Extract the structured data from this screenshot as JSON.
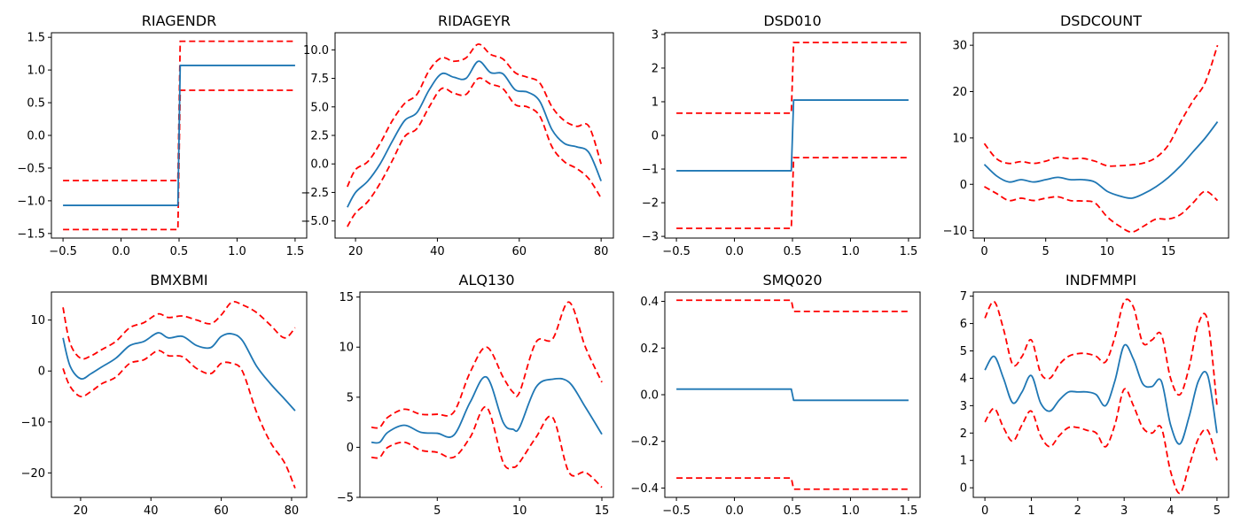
{
  "colors": {
    "fit": "#1f77b4",
    "ci": "#ff0000",
    "axis": "#000000",
    "background": "#ffffff"
  },
  "chart_data": [
    {
      "type": "line",
      "title": "RIAGENDR",
      "xlabel": "",
      "ylabel": "",
      "xlim": [
        -0.6,
        1.6
      ],
      "ylim": [
        -1.57,
        1.57
      ],
      "xticks": [
        -0.5,
        0.0,
        0.5,
        1.0,
        1.5
      ],
      "xtick_labels": [
        "−0.5",
        "0.0",
        "0.5",
        "1.0",
        "1.5"
      ],
      "yticks": [
        -1.5,
        -1.0,
        -0.5,
        0.0,
        0.5,
        1.0,
        1.5
      ],
      "ytick_labels": [
        "−1.5",
        "−1.0",
        "−0.5",
        "0.0",
        "0.5",
        "1.0",
        "1.5"
      ],
      "grid": false,
      "series": [
        {
          "role": "fit",
          "x": [
            -0.5,
            0.49,
            0.51,
            1.5
          ],
          "y": [
            -1.07,
            -1.07,
            1.07,
            1.07
          ]
        },
        {
          "role": "ci_upper",
          "x": [
            -0.5,
            0.49,
            0.51,
            1.5
          ],
          "y": [
            -0.69,
            -0.69,
            1.44,
            1.44
          ]
        },
        {
          "role": "ci_lower",
          "x": [
            -0.5,
            0.49,
            0.51,
            1.5
          ],
          "y": [
            -1.44,
            -1.44,
            0.69,
            0.69
          ]
        }
      ]
    },
    {
      "type": "line",
      "title": "RIDAGEYR",
      "xlabel": "",
      "ylabel": "",
      "xlim": [
        15,
        83
      ],
      "ylim": [
        -6.5,
        11.5
      ],
      "xticks": [
        20,
        40,
        60,
        80
      ],
      "xtick_labels": [
        "20",
        "40",
        "60",
        "80"
      ],
      "yticks": [
        -5.0,
        -2.5,
        0.0,
        2.5,
        5.0,
        7.5,
        10.0
      ],
      "ytick_labels": [
        "−5.0",
        "−2.5",
        "0.0",
        "2.5",
        "5.0",
        "7.5",
        "10.0"
      ],
      "grid": false,
      "series": [
        {
          "role": "fit",
          "x": [
            18,
            20,
            23,
            26,
            29,
            32,
            35,
            38,
            41,
            44,
            47,
            50,
            53,
            56,
            59,
            62,
            65,
            68,
            71,
            74,
            77,
            80
          ],
          "y": [
            -3.8,
            -2.5,
            -1.5,
            0,
            2,
            3.8,
            4.5,
            6.5,
            7.9,
            7.6,
            7.5,
            9,
            8,
            7.9,
            6.5,
            6.3,
            5.5,
            3,
            1.8,
            1.5,
            1.0,
            -1.5
          ]
        },
        {
          "role": "ci_upper",
          "x": [
            18,
            20,
            23,
            26,
            29,
            32,
            35,
            38,
            41,
            44,
            47,
            50,
            53,
            56,
            59,
            62,
            65,
            68,
            71,
            74,
            77,
            80
          ],
          "y": [
            -2.0,
            -0.5,
            0.2,
            1.8,
            3.8,
            5.3,
            6.1,
            8.2,
            9.3,
            9.0,
            9.3,
            10.5,
            9.6,
            9.2,
            8.0,
            7.6,
            7.1,
            5.0,
            3.8,
            3.3,
            3.3,
            0.0
          ]
        },
        {
          "role": "ci_lower",
          "x": [
            18,
            20,
            23,
            26,
            29,
            32,
            35,
            38,
            41,
            44,
            47,
            50,
            53,
            56,
            59,
            62,
            65,
            68,
            71,
            74,
            77,
            80
          ],
          "y": [
            -5.5,
            -4.3,
            -3.3,
            -1.7,
            0.3,
            2.4,
            3.1,
            5.0,
            6.6,
            6.2,
            6.1,
            7.5,
            7.0,
            6.6,
            5.2,
            5.0,
            4.2,
            1.5,
            0.2,
            -0.4,
            -1.3,
            -3.0
          ]
        }
      ]
    },
    {
      "type": "line",
      "title": "DSD010",
      "xlabel": "",
      "ylabel": "",
      "xlim": [
        -0.6,
        1.6
      ],
      "ylim": [
        -3.05,
        3.05
      ],
      "xticks": [
        -0.5,
        0.0,
        0.5,
        1.0,
        1.5
      ],
      "xtick_labels": [
        "−0.5",
        "0.0",
        "0.5",
        "1.0",
        "1.5"
      ],
      "yticks": [
        -3,
        -2,
        -1,
        0,
        1,
        2,
        3
      ],
      "ytick_labels": [
        "−3",
        "−2",
        "−1",
        "0",
        "1",
        "2",
        "3"
      ],
      "grid": false,
      "series": [
        {
          "role": "fit",
          "x": [
            -0.5,
            0.49,
            0.51,
            1.5
          ],
          "y": [
            -1.05,
            -1.05,
            1.05,
            1.05
          ]
        },
        {
          "role": "ci_upper",
          "x": [
            -0.5,
            0.49,
            0.51,
            1.5
          ],
          "y": [
            0.66,
            0.66,
            2.76,
            2.76
          ]
        },
        {
          "role": "ci_lower",
          "x": [
            -0.5,
            0.49,
            0.51,
            1.5
          ],
          "y": [
            -2.76,
            -2.76,
            -0.66,
            -0.66
          ]
        }
      ]
    },
    {
      "type": "line",
      "title": "DSDCOUNT",
      "xlabel": "",
      "ylabel": "",
      "xlim": [
        -0.9,
        19.9
      ],
      "ylim": [
        -11.6,
        32.7
      ],
      "xticks": [
        0,
        5,
        10,
        15
      ],
      "xtick_labels": [
        "0",
        "5",
        "10",
        "15"
      ],
      "yticks": [
        -10,
        0,
        10,
        20,
        30
      ],
      "ytick_labels": [
        "−10",
        "0",
        "10",
        "20",
        "30"
      ],
      "grid": false,
      "series": [
        {
          "role": "fit",
          "x": [
            0,
            1,
            2,
            3,
            4,
            5,
            6,
            7,
            8,
            9,
            10,
            11,
            12,
            13,
            14,
            15,
            16,
            17,
            18,
            19
          ],
          "y": [
            4.3,
            1.8,
            0.5,
            1.0,
            0.5,
            1.0,
            1.5,
            1.0,
            1.0,
            0.5,
            -1.5,
            -2.5,
            -3.0,
            -2.0,
            -0.5,
            1.5,
            4.0,
            7.0,
            10.0,
            13.5
          ]
        },
        {
          "role": "ci_upper",
          "x": [
            0,
            1,
            2,
            3,
            4,
            5,
            6,
            7,
            8,
            9,
            10,
            11,
            12,
            13,
            14,
            15,
            16,
            17,
            18,
            19
          ],
          "y": [
            8.8,
            5.5,
            4.5,
            4.9,
            4.5,
            5.0,
            5.8,
            5.5,
            5.6,
            5.0,
            4.0,
            4.0,
            4.2,
            4.6,
            5.8,
            8.5,
            13.5,
            18.0,
            22.0,
            30.0
          ]
        },
        {
          "role": "ci_lower",
          "x": [
            0,
            1,
            2,
            3,
            4,
            5,
            6,
            7,
            8,
            9,
            10,
            11,
            12,
            13,
            14,
            15,
            16,
            17,
            18,
            19
          ],
          "y": [
            -0.5,
            -2.0,
            -3.5,
            -3.0,
            -3.5,
            -3.0,
            -2.7,
            -3.5,
            -3.6,
            -4.0,
            -7.0,
            -9.0,
            -10.3,
            -9.0,
            -7.5,
            -7.5,
            -6.5,
            -4.0,
            -1.5,
            -3.5
          ]
        }
      ]
    },
    {
      "type": "line",
      "title": "BMXBMI",
      "xlabel": "",
      "ylabel": "",
      "xlim": [
        11.7,
        84.3
      ],
      "ylim": [
        -24.8,
        15.5
      ],
      "xticks": [
        20,
        40,
        60,
        80
      ],
      "xtick_labels": [
        "20",
        "40",
        "60",
        "80"
      ],
      "yticks": [
        -20,
        -10,
        0,
        10
      ],
      "ytick_labels": [
        "−20",
        "−10",
        "0",
        "10"
      ],
      "grid": false,
      "series": [
        {
          "role": "fit",
          "x": [
            15,
            17,
            20,
            23,
            26,
            30,
            34,
            38,
            42,
            45,
            49,
            53,
            57,
            60,
            63,
            66,
            70,
            74,
            78,
            81
          ],
          "y": [
            6.5,
            1.0,
            -1.5,
            -0.5,
            0.8,
            2.5,
            5.0,
            5.8,
            7.5,
            6.5,
            6.8,
            5.0,
            4.6,
            6.8,
            7.3,
            6.0,
            1.0,
            -2.5,
            -5.5,
            -7.8
          ]
        },
        {
          "role": "ci_upper",
          "x": [
            15,
            17,
            20,
            23,
            26,
            30,
            34,
            38,
            42,
            45,
            49,
            53,
            57,
            60,
            63,
            66,
            70,
            74,
            78,
            81
          ],
          "y": [
            12.5,
            5.5,
            2.5,
            3.0,
            4.2,
            5.8,
            8.5,
            9.5,
            11.2,
            10.5,
            10.8,
            10.0,
            9.3,
            11.0,
            13.5,
            13.0,
            11.5,
            9.0,
            6.5,
            8.5
          ]
        },
        {
          "role": "ci_lower",
          "x": [
            15,
            17,
            20,
            23,
            26,
            30,
            34,
            38,
            42,
            45,
            49,
            53,
            57,
            60,
            63,
            66,
            70,
            74,
            78,
            81
          ],
          "y": [
            0.5,
            -3.0,
            -5.0,
            -4.0,
            -2.5,
            -1.2,
            1.5,
            2.2,
            4.0,
            3.0,
            2.8,
            0.5,
            -0.5,
            1.5,
            1.5,
            0.0,
            -8.0,
            -14.0,
            -18.0,
            -23.0
          ]
        }
      ]
    },
    {
      "type": "line",
      "title": "ALQ130",
      "xlabel": "",
      "ylabel": "",
      "xlim": [
        0.3,
        15.7
      ],
      "ylim": [
        -5.0,
        15.5
      ],
      "xticks": [
        5,
        10,
        15
      ],
      "xtick_labels": [
        "5",
        "10",
        "15"
      ],
      "yticks": [
        -5,
        0,
        5,
        10,
        15
      ],
      "ytick_labels": [
        "−5",
        "0",
        "5",
        "10",
        "15"
      ],
      "grid": false,
      "series": [
        {
          "role": "fit",
          "x": [
            1,
            1.5,
            2,
            3,
            4,
            5,
            6,
            7,
            8,
            9,
            9.6,
            10,
            11,
            12,
            13,
            14,
            15
          ],
          "y": [
            0.5,
            0.5,
            1.5,
            2.2,
            1.5,
            1.4,
            1.2,
            4.5,
            7.0,
            2.5,
            1.8,
            2.0,
            6.0,
            6.8,
            6.5,
            4.0,
            1.3
          ]
        },
        {
          "role": "ci_upper",
          "x": [
            1,
            1.5,
            2,
            3,
            4,
            5,
            6,
            7,
            8,
            9,
            9.6,
            10,
            11,
            12,
            13,
            14,
            15
          ],
          "y": [
            2.0,
            2.0,
            3.0,
            3.8,
            3.3,
            3.3,
            3.5,
            7.5,
            10.0,
            7.0,
            5.5,
            5.5,
            10.5,
            10.8,
            14.5,
            10.0,
            6.5
          ]
        },
        {
          "role": "ci_lower",
          "x": [
            1,
            1.5,
            2,
            3,
            4,
            5,
            6,
            7,
            8,
            9,
            9.6,
            10,
            11,
            12,
            13,
            14,
            15
          ],
          "y": [
            -1.0,
            -1.0,
            0.0,
            0.5,
            -0.3,
            -0.5,
            -1.0,
            1.0,
            4.0,
            -1.5,
            -2.0,
            -1.5,
            1.0,
            3.0,
            -2.5,
            -2.5,
            -4.0
          ]
        }
      ]
    },
    {
      "type": "line",
      "title": "SMQ020",
      "xlabel": "",
      "ylabel": "",
      "xlim": [
        -0.6,
        1.6
      ],
      "ylim": [
        -0.44,
        0.44
      ],
      "xticks": [
        -0.5,
        0.0,
        0.5,
        1.0,
        1.5
      ],
      "xtick_labels": [
        "−0.5",
        "0.0",
        "0.5",
        "1.0",
        "1.5"
      ],
      "yticks": [
        -0.4,
        -0.2,
        0.0,
        0.2,
        0.4
      ],
      "ytick_labels": [
        "−0.4",
        "−0.2",
        "0.0",
        "0.2",
        "0.4"
      ],
      "grid": false,
      "series": [
        {
          "role": "fit",
          "x": [
            -0.5,
            0.49,
            0.51,
            1.5
          ],
          "y": [
            0.024,
            0.024,
            -0.024,
            -0.024
          ]
        },
        {
          "role": "ci_upper",
          "x": [
            -0.5,
            0.49,
            0.51,
            1.5
          ],
          "y": [
            0.405,
            0.405,
            0.357,
            0.357
          ]
        },
        {
          "role": "ci_lower",
          "x": [
            -0.5,
            0.49,
            0.51,
            1.5
          ],
          "y": [
            -0.357,
            -0.357,
            -0.405,
            -0.405
          ]
        }
      ]
    },
    {
      "type": "line",
      "title": "INDFMMPI",
      "xlabel": "",
      "ylabel": "",
      "xlim": [
        -0.25,
        5.25
      ],
      "ylim": [
        -0.35,
        7.15
      ],
      "xticks": [
        0,
        1,
        2,
        3,
        4,
        5
      ],
      "xtick_labels": [
        "0",
        "1",
        "2",
        "3",
        "4",
        "5"
      ],
      "yticks": [
        0,
        1,
        2,
        3,
        4,
        5,
        6,
        7
      ],
      "ytick_labels": [
        "0",
        "1",
        "2",
        "3",
        "4",
        "5",
        "6",
        "7"
      ],
      "grid": false,
      "series": [
        {
          "role": "fit",
          "x": [
            0,
            0.2,
            0.4,
            0.6,
            0.8,
            1.0,
            1.2,
            1.4,
            1.6,
            1.8,
            2.0,
            2.2,
            2.4,
            2.6,
            2.8,
            3.0,
            3.2,
            3.4,
            3.6,
            3.8,
            4.0,
            4.2,
            4.4,
            4.6,
            4.8,
            5.0
          ],
          "y": [
            4.3,
            4.8,
            4.0,
            3.1,
            3.5,
            4.1,
            3.1,
            2.8,
            3.2,
            3.5,
            3.5,
            3.5,
            3.4,
            3.0,
            3.9,
            5.2,
            4.7,
            3.8,
            3.7,
            3.9,
            2.3,
            1.6,
            2.6,
            3.9,
            4.1,
            2.0
          ]
        },
        {
          "role": "ci_upper",
          "x": [
            0,
            0.2,
            0.4,
            0.6,
            0.8,
            1.0,
            1.2,
            1.4,
            1.6,
            1.8,
            2.0,
            2.2,
            2.4,
            2.6,
            2.8,
            3.0,
            3.2,
            3.4,
            3.6,
            3.8,
            4.0,
            4.2,
            4.4,
            4.6,
            4.8,
            5.0
          ],
          "y": [
            6.2,
            6.8,
            5.8,
            4.5,
            4.8,
            5.4,
            4.2,
            4.0,
            4.5,
            4.8,
            4.9,
            4.9,
            4.8,
            4.6,
            5.5,
            6.8,
            6.6,
            5.3,
            5.4,
            5.6,
            4.0,
            3.4,
            4.4,
            6.0,
            6.1,
            3.0
          ]
        },
        {
          "role": "ci_lower",
          "x": [
            0,
            0.2,
            0.4,
            0.6,
            0.8,
            1.0,
            1.2,
            1.4,
            1.6,
            1.8,
            2.0,
            2.2,
            2.4,
            2.6,
            2.8,
            3.0,
            3.2,
            3.4,
            3.6,
            3.8,
            4.0,
            4.2,
            4.4,
            4.6,
            4.8,
            5.0
          ],
          "y": [
            2.4,
            2.9,
            2.2,
            1.7,
            2.3,
            2.8,
            1.9,
            1.5,
            1.9,
            2.2,
            2.2,
            2.1,
            2.0,
            1.5,
            2.3,
            3.6,
            3.0,
            2.2,
            2.0,
            2.2,
            0.6,
            -0.2,
            0.8,
            1.8,
            2.1,
            1.0
          ]
        }
      ]
    }
  ]
}
